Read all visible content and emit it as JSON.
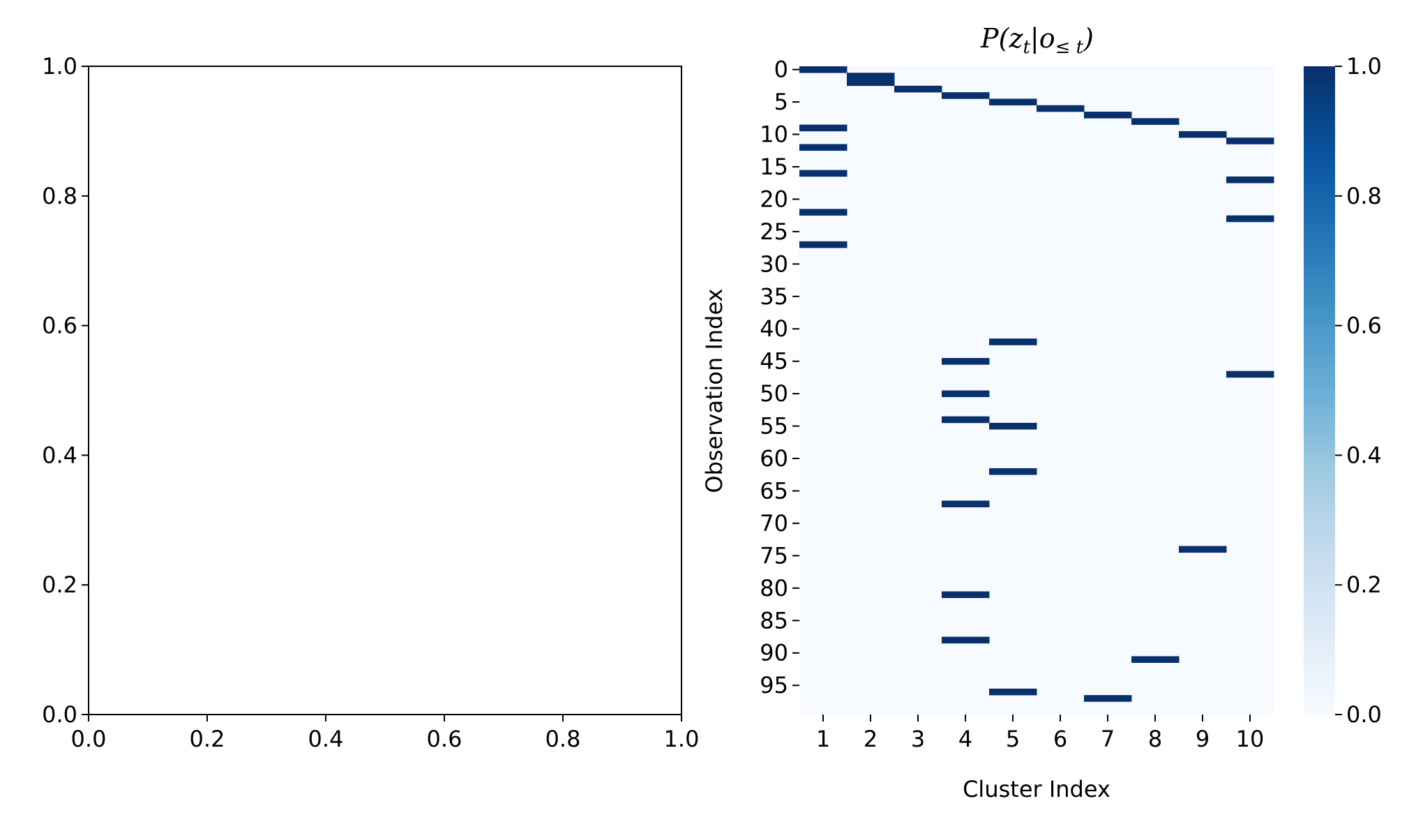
{
  "empty_axes": {
    "xlim": [
      0.0,
      1.0
    ],
    "ylim": [
      0.0,
      1.0
    ],
    "x_tick_labels": [
      "0.0",
      "0.2",
      "0.4",
      "0.6",
      "0.8",
      "1.0"
    ],
    "y_tick_labels": [
      "0.0",
      "0.2",
      "0.4",
      "0.6",
      "0.8",
      "1.0"
    ]
  },
  "chart_data": {
    "type": "heatmap",
    "title": "P(z_t | o_≤t)",
    "title_parts": {
      "p": "P(z",
      "t1": "t",
      "bar": "|o",
      "sub": "≤ t",
      "close": ")"
    },
    "xlabel": "Cluster Index",
    "ylabel": "Observation Index",
    "x_tick_labels": [
      "1",
      "2",
      "3",
      "4",
      "5",
      "6",
      "7",
      "8",
      "9",
      "10"
    ],
    "y_tick_labels": [
      "0",
      "5",
      "10",
      "15",
      "20",
      "25",
      "30",
      "35",
      "40",
      "45",
      "50",
      "55",
      "60",
      "65",
      "70",
      "75",
      "80",
      "85",
      "90",
      "95"
    ],
    "n_rows": 100,
    "n_cols": 10,
    "background_value": 0.0,
    "cells": [
      {
        "row": 0,
        "col": 1,
        "value": 1.0
      },
      {
        "row": 1,
        "col": 2,
        "value": 1.0
      },
      {
        "row": 2,
        "col": 2,
        "value": 1.0
      },
      {
        "row": 3,
        "col": 3,
        "value": 1.0
      },
      {
        "row": 4,
        "col": 4,
        "value": 1.0
      },
      {
        "row": 5,
        "col": 5,
        "value": 1.0
      },
      {
        "row": 6,
        "col": 6,
        "value": 1.0
      },
      {
        "row": 7,
        "col": 7,
        "value": 1.0
      },
      {
        "row": 8,
        "col": 8,
        "value": 1.0
      },
      {
        "row": 9,
        "col": 1,
        "value": 1.0
      },
      {
        "row": 10,
        "col": 9,
        "value": 1.0
      },
      {
        "row": 11,
        "col": 10,
        "value": 1.0
      },
      {
        "row": 12,
        "col": 1,
        "value": 1.0
      },
      {
        "row": 16,
        "col": 1,
        "value": 1.0
      },
      {
        "row": 17,
        "col": 10,
        "value": 1.0
      },
      {
        "row": 22,
        "col": 1,
        "value": 1.0
      },
      {
        "row": 23,
        "col": 10,
        "value": 1.0
      },
      {
        "row": 27,
        "col": 1,
        "value": 1.0
      },
      {
        "row": 42,
        "col": 5,
        "value": 1.0
      },
      {
        "row": 45,
        "col": 4,
        "value": 1.0
      },
      {
        "row": 47,
        "col": 10,
        "value": 1.0
      },
      {
        "row": 50,
        "col": 4,
        "value": 1.0
      },
      {
        "row": 54,
        "col": 4,
        "value": 1.0
      },
      {
        "row": 55,
        "col": 5,
        "value": 1.0
      },
      {
        "row": 62,
        "col": 5,
        "value": 1.0
      },
      {
        "row": 67,
        "col": 4,
        "value": 1.0
      },
      {
        "row": 74,
        "col": 9,
        "value": 1.0
      },
      {
        "row": 81,
        "col": 4,
        "value": 1.0
      },
      {
        "row": 88,
        "col": 4,
        "value": 1.0
      },
      {
        "row": 91,
        "col": 8,
        "value": 1.0
      },
      {
        "row": 96,
        "col": 5,
        "value": 1.0
      },
      {
        "row": 97,
        "col": 7,
        "value": 1.0
      }
    ],
    "colorbar": {
      "range": [
        0.0,
        1.0
      ],
      "tick_labels": [
        "0.0",
        "0.2",
        "0.4",
        "0.6",
        "0.8",
        "1.0"
      ],
      "colormap": "Blues",
      "color_min": "#f7fbff",
      "color_max": "#08306b"
    }
  }
}
